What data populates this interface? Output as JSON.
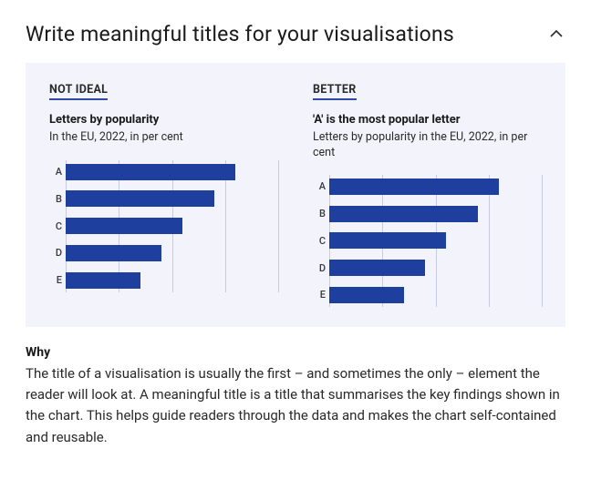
{
  "header": {
    "title": "Write meaningful titles for your visualisations"
  },
  "figure": {
    "background_color": "#f3f4fb",
    "grid_color": "#c7cbe0",
    "bar_color": "#1f3f9e",
    "xmax": 100,
    "gridlines": [
      0,
      25,
      50,
      75,
      100
    ],
    "left": {
      "label": "NOT IDEAL",
      "title": "Letters by popularity",
      "caption": "In the EU, 2022, in per cent",
      "categories": [
        "A",
        "B",
        "C",
        "D",
        "E"
      ],
      "values": [
        80,
        70,
        55,
        45,
        35
      ]
    },
    "right": {
      "label": "BETTER",
      "title": "'A' is the most popular letter",
      "caption": "Letters by popularity in the EU, 2022, in per cent",
      "categories": [
        "A",
        "B",
        "C",
        "D",
        "E"
      ],
      "values": [
        80,
        70,
        55,
        45,
        35
      ]
    }
  },
  "why": {
    "heading": "Why",
    "body": "The title of a visualisation is usually the first – and sometimes the only – element the reader will look at. A meaningful title is a title that summarises the key findings shown in the chart. This helps guide readers through the data and makes the chart self-contained and reusable."
  }
}
